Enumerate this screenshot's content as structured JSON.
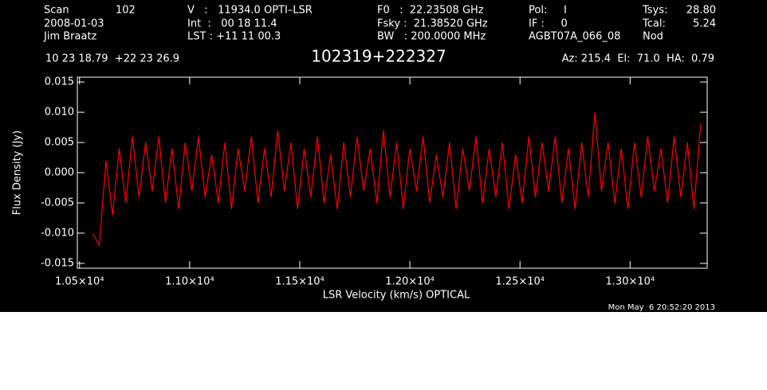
{
  "header": {
    "rows": [
      [
        "Scan",
        "102",
        "V   :   11934.0 OPTI–LSR",
        "F0   :  22.23508 GHz",
        "Pol:     I",
        "Tsys:",
        "28.80"
      ],
      [
        "2008-01-03",
        "Int  :   00 18 11.4",
        "Fsky :  21.38520 GHz",
        "IF :     0",
        "Tcal:",
        "5.24"
      ],
      [
        "Jim Braatz",
        "LST : +11 11 00.3",
        "BW   : 200.0000 MHz",
        "AGBT07A_066_08",
        "Nod"
      ]
    ],
    "coordinates": "10 23 18.79  +22 23 26.9",
    "pointing": "Az: 215.4  El:  71.0  HA:  0.79",
    "timestamp": "Mon May  6 20:52:20 2013"
  },
  "chart_data": {
    "type": "line",
    "title": "102319+222327",
    "x_label": "LSR Velocity (km/s) OPTICAL",
    "y_label": "Flux Density (Jy)",
    "xlim": [
      10490,
      13350
    ],
    "ylim": [
      -0.0158,
      0.0158
    ],
    "xticks": [
      {
        "value": 10500,
        "label": "1.05×10⁴"
      },
      {
        "value": 11000,
        "label": "1.10×10⁴"
      },
      {
        "value": 11500,
        "label": "1.15×10⁴"
      },
      {
        "value": 12000,
        "label": "1.20×10⁴"
      },
      {
        "value": 12500,
        "label": "1.25×10⁴"
      },
      {
        "value": 13000,
        "label": "1.30×10⁴"
      }
    ],
    "yticks": [
      {
        "value": -0.015,
        "label": "-0.015"
      },
      {
        "value": -0.01,
        "label": "-0.010"
      },
      {
        "value": -0.005,
        "label": "-0.005"
      },
      {
        "value": 0,
        "label": "0.000"
      },
      {
        "value": 0.005,
        "label": "0.005"
      },
      {
        "value": 0.01,
        "label": "0.010"
      },
      {
        "value": 0.015,
        "label": "0.015"
      }
    ],
    "series": [
      {
        "color": "#ff0000",
        "x": [
          10560,
          10590,
          10620,
          10650,
          10680,
          10710,
          10740,
          10770,
          10800,
          10830,
          10860,
          10890,
          10920,
          10950,
          10980,
          11010,
          11040,
          11070,
          11100,
          11130,
          11160,
          11190,
          11220,
          11250,
          11280,
          11310,
          11340,
          11370,
          11400,
          11430,
          11460,
          11490,
          11520,
          11550,
          11580,
          11610,
          11640,
          11670,
          11700,
          11730,
          11760,
          11790,
          11820,
          11850,
          11880,
          11910,
          11940,
          11970,
          12000,
          12030,
          12060,
          12090,
          12120,
          12150,
          12180,
          12210,
          12240,
          12270,
          12300,
          12330,
          12360,
          12390,
          12420,
          12450,
          12480,
          12510,
          12540,
          12570,
          12600,
          12630,
          12660,
          12690,
          12720,
          12750,
          12780,
          12810,
          12840,
          12870,
          12900,
          12930,
          12960,
          12990,
          13020,
          13050,
          13080,
          13110,
          13140,
          13170,
          13200,
          13230,
          13260,
          13290,
          13320
        ],
        "values": [
          -0.01,
          -0.012,
          0.002,
          -0.007,
          0.004,
          -0.005,
          0.006,
          -0.004,
          0.005,
          -0.003,
          0.006,
          -0.005,
          0.004,
          -0.006,
          0.005,
          -0.003,
          0.006,
          -0.004,
          0.003,
          -0.005,
          0.005,
          -0.006,
          0.004,
          -0.003,
          0.006,
          -0.005,
          0.004,
          -0.004,
          0.007,
          -0.003,
          0.005,
          -0.006,
          0.004,
          -0.004,
          0.006,
          -0.005,
          0.003,
          -0.006,
          0.005,
          -0.004,
          0.006,
          -0.003,
          0.004,
          -0.005,
          0.007,
          -0.004,
          0.005,
          -0.006,
          0.004,
          -0.003,
          0.006,
          -0.005,
          0.003,
          -0.004,
          0.005,
          -0.006,
          0.004,
          -0.003,
          0.006,
          -0.005,
          0.004,
          -0.004,
          0.005,
          -0.006,
          0.003,
          -0.005,
          0.006,
          -0.004,
          0.005,
          -0.003,
          0.006,
          -0.005,
          0.004,
          -0.006,
          0.005,
          -0.004,
          0.01,
          -0.003,
          0.005,
          -0.005,
          0.004,
          -0.006,
          0.005,
          -0.004,
          0.006,
          -0.003,
          0.004,
          -0.005,
          0.006,
          -0.004,
          0.005,
          -0.006,
          0.008
        ]
      }
    ]
  }
}
